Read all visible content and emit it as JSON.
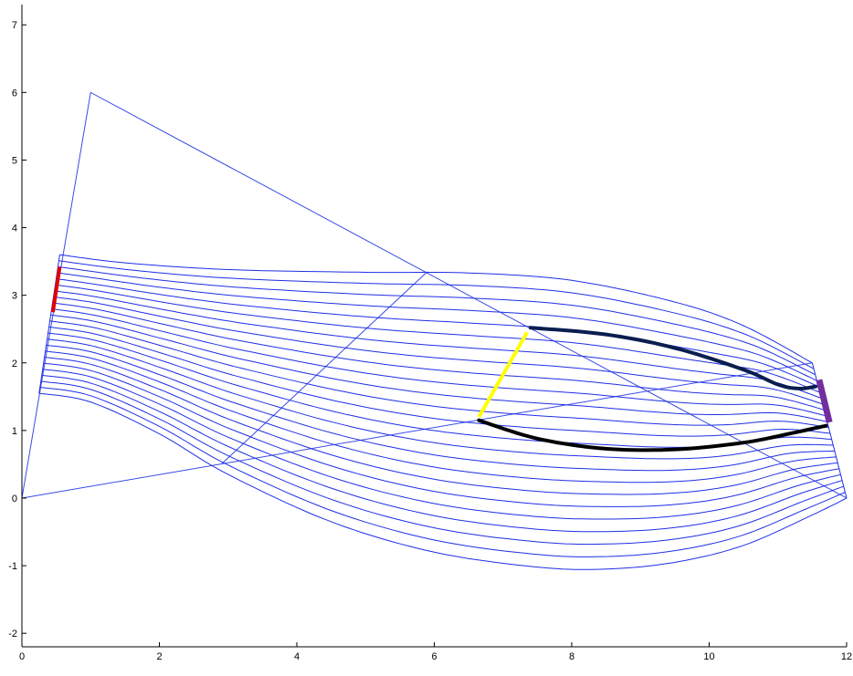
{
  "chart_data": {
    "type": "line",
    "title": "",
    "xlabel": "",
    "ylabel": "",
    "xlim": [
      0,
      12
    ],
    "ylim": [
      -2.2,
      7.3
    ],
    "x_ticks": [
      0,
      2,
      4,
      6,
      8,
      10,
      12
    ],
    "x_tick_labels": [
      "0",
      "2",
      "4",
      "6",
      "8",
      "10",
      "12"
    ],
    "y_ticks": [
      -2,
      -1,
      0,
      1,
      2,
      3,
      4,
      5,
      6,
      7
    ],
    "y_tick_labels": [
      "-2",
      "-1",
      "0",
      "1",
      "2",
      "3",
      "4",
      "5",
      "6",
      "7"
    ],
    "grid": false,
    "legend": "none",
    "colors": {
      "curves": "#1f2fe6",
      "frame_lines": "#3a4be6",
      "red_segment": "#e00000",
      "yellow_segment": "#ffff00",
      "purple_segment": "#7030a0",
      "navy_curve": "#0a1e4f",
      "black_curve": "#000000"
    },
    "frame_lines": [
      {
        "x": [
          0,
          1,
          12
        ],
        "y": [
          0,
          6,
          0
        ]
      },
      {
        "x": [
          0,
          11.5
        ],
        "y": [
          0,
          2.0
        ]
      },
      {
        "x": [
          2.9,
          5.9
        ],
        "y": [
          0.5,
          3.35
        ]
      }
    ],
    "curve_family": {
      "count": 24,
      "top": {
        "x": [
          0.55,
          1.5,
          3,
          5,
          6.5,
          8,
          9.5,
          10.5,
          11.5
        ],
        "y": [
          3.6,
          3.48,
          3.38,
          3.34,
          3.33,
          3.22,
          2.9,
          2.55,
          2.0
        ]
      },
      "bottom": {
        "x": [
          0.25,
          1,
          2,
          3,
          4.5,
          6,
          7.5,
          8.5,
          9.5,
          10.5,
          11.5,
          12.0
        ],
        "y": [
          1.55,
          1.42,
          0.95,
          0.35,
          -0.35,
          -0.8,
          -1.02,
          -1.05,
          -0.95,
          -0.7,
          -0.25,
          0.0
        ]
      }
    },
    "highlight_segments": [
      {
        "name": "red",
        "x": [
          0.45,
          0.55
        ],
        "y": [
          2.75,
          3.42
        ]
      },
      {
        "name": "yellow",
        "x": [
          6.65,
          7.35
        ],
        "y": [
          1.2,
          2.45
        ]
      },
      {
        "name": "purple",
        "x": [
          11.6,
          11.75
        ],
        "y": [
          1.75,
          1.12
        ]
      }
    ],
    "highlight_curves": [
      {
        "name": "navy",
        "x": [
          7.4,
          8.5,
          9.5,
          10.5,
          11.0,
          11.3,
          11.55
        ],
        "y": [
          2.52,
          2.42,
          2.22,
          1.9,
          1.68,
          1.62,
          1.65
        ]
      },
      {
        "name": "black",
        "x": [
          6.65,
          7.5,
          8.5,
          9.5,
          10.5,
          11.2,
          11.7
        ],
        "y": [
          1.15,
          0.88,
          0.73,
          0.72,
          0.82,
          0.96,
          1.07
        ]
      }
    ]
  }
}
